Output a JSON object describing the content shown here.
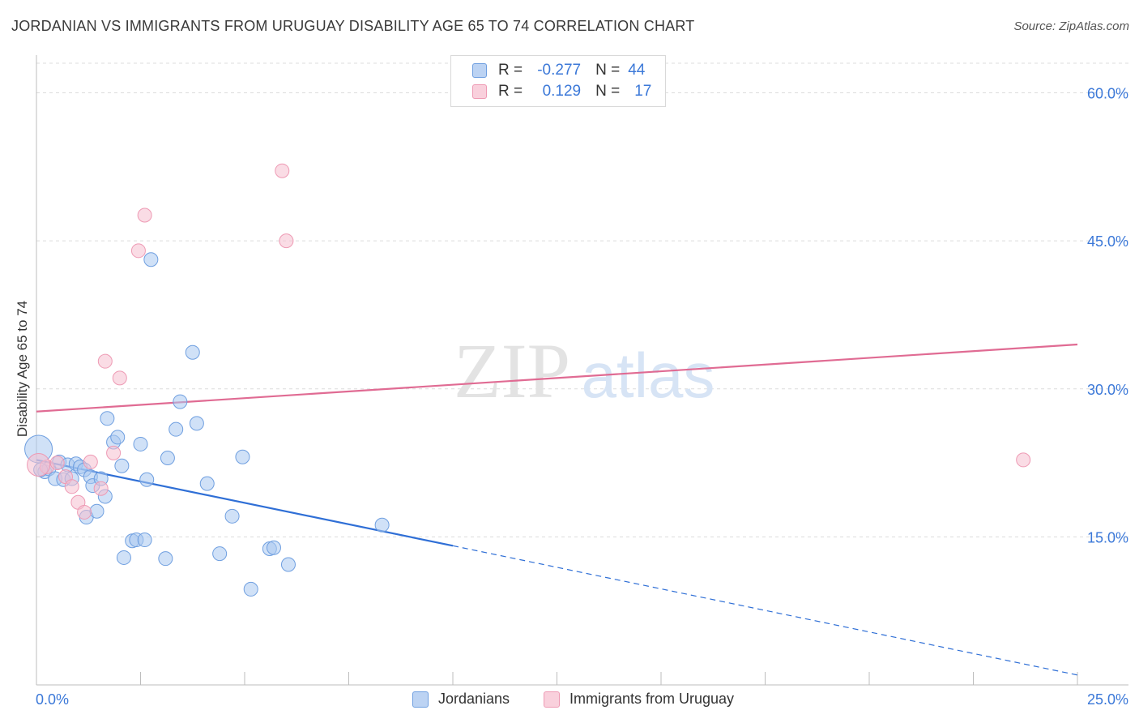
{
  "title": "JORDANIAN VS IMMIGRANTS FROM URUGUAY DISABILITY AGE 65 TO 74 CORRELATION CHART",
  "source": "Source: ZipAtlas.com",
  "watermark": {
    "zip": "ZIP",
    "atlas": "atlas"
  },
  "legend": {
    "r_label": "R =",
    "n_label": "N =",
    "rows": [
      {
        "r": "-0.277",
        "n": "44"
      },
      {
        "r": "0.129",
        "n": "17"
      }
    ]
  },
  "colors": {
    "blue_fill": "#a9c8f0",
    "blue_stroke": "#6f9fe0",
    "blue_line": "#2f6fd6",
    "pink_fill": "#f6bfd0",
    "pink_stroke": "#ee9ab4",
    "pink_line": "#e06b93",
    "axis_label": "#3b78d8",
    "grid": "#dcdcdc"
  },
  "chart_data": {
    "type": "scatter",
    "title": "JORDANIAN VS IMMIGRANTS FROM URUGUAY DISABILITY AGE 65 TO 74 CORRELATION CHART",
    "xlabel": "",
    "ylabel": "Disability Age 65 to 74",
    "xlim": [
      0,
      25
    ],
    "ylim": [
      0,
      63
    ],
    "x_tick_labels": [
      "0.0%",
      "25.0%"
    ],
    "y_ticks": [
      15,
      30,
      45,
      60
    ],
    "y_tick_labels": [
      "15.0%",
      "30.0%",
      "45.0%",
      "60.0%"
    ],
    "grid": true,
    "legend_position": "top-center",
    "series": [
      {
        "name": "Jordanians",
        "color": "#a9c8f0",
        "points": [
          [
            0.05,
            23.9
          ],
          [
            0.2,
            21.6
          ],
          [
            0.3,
            21.9
          ],
          [
            0.45,
            20.9
          ],
          [
            0.55,
            22.6
          ],
          [
            0.65,
            20.8
          ],
          [
            0.75,
            22.3
          ],
          [
            0.85,
            20.9
          ],
          [
            0.95,
            22.4
          ],
          [
            1.05,
            22.1
          ],
          [
            1.15,
            21.8
          ],
          [
            1.2,
            17.0
          ],
          [
            1.3,
            21.1
          ],
          [
            1.35,
            20.2
          ],
          [
            1.45,
            17.6
          ],
          [
            1.55,
            20.9
          ],
          [
            1.65,
            19.1
          ],
          [
            1.7,
            27.0
          ],
          [
            1.85,
            24.6
          ],
          [
            1.95,
            25.1
          ],
          [
            2.05,
            22.2
          ],
          [
            2.1,
            12.9
          ],
          [
            2.3,
            14.6
          ],
          [
            2.4,
            14.7
          ],
          [
            2.5,
            24.4
          ],
          [
            2.6,
            14.7
          ],
          [
            2.65,
            20.8
          ],
          [
            2.75,
            43.1
          ],
          [
            3.1,
            12.8
          ],
          [
            3.15,
            23.0
          ],
          [
            3.35,
            25.9
          ],
          [
            3.45,
            28.7
          ],
          [
            3.75,
            33.7
          ],
          [
            3.85,
            26.5
          ],
          [
            4.1,
            20.4
          ],
          [
            4.4,
            13.3
          ],
          [
            4.7,
            17.1
          ],
          [
            4.95,
            23.1
          ],
          [
            5.15,
            9.7
          ],
          [
            5.6,
            13.8
          ],
          [
            5.7,
            13.9
          ],
          [
            6.05,
            12.2
          ],
          [
            8.3,
            16.2
          ],
          [
            0.1,
            21.8
          ]
        ],
        "trend": {
          "x": [
            0,
            10
          ],
          "y": [
            22.8,
            14.1
          ],
          "dashed_to": [
            25,
            1.0
          ]
        }
      },
      {
        "name": "Immigrants from Uruguay",
        "color": "#f6bfd0",
        "points": [
          [
            0.25,
            22.1
          ],
          [
            0.5,
            22.5
          ],
          [
            0.7,
            21.1
          ],
          [
            0.85,
            20.1
          ],
          [
            1.0,
            18.5
          ],
          [
            1.15,
            17.5
          ],
          [
            1.3,
            22.6
          ],
          [
            1.55,
            19.9
          ],
          [
            1.65,
            32.8
          ],
          [
            1.85,
            23.5
          ],
          [
            2.0,
            31.1
          ],
          [
            2.45,
            44.0
          ],
          [
            2.6,
            47.6
          ],
          [
            5.9,
            52.1
          ],
          [
            6.0,
            45.0
          ],
          [
            23.7,
            22.8
          ],
          [
            0.05,
            22.3
          ]
        ],
        "trend": {
          "x": [
            0,
            25
          ],
          "y": [
            27.7,
            34.5
          ]
        }
      }
    ]
  }
}
